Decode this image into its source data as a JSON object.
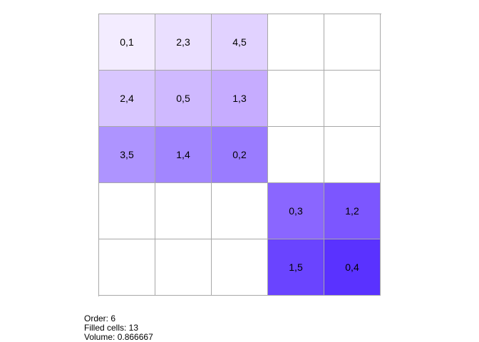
{
  "grid": {
    "rows": 5,
    "cols": 5,
    "cells": [
      [
        {
          "label": "0,1",
          "color": "#f3ecff"
        },
        {
          "label": "2,3",
          "color": "#eadfff"
        },
        {
          "label": "4,5",
          "color": "#e1d2ff"
        },
        {
          "label": "",
          "color": "#ffffff"
        },
        {
          "label": "",
          "color": "#ffffff"
        }
      ],
      [
        {
          "label": "2,4",
          "color": "#d8c6ff"
        },
        {
          "label": "0,5",
          "color": "#cfb9ff"
        },
        {
          "label": "1,3",
          "color": "#c6acff"
        },
        {
          "label": "",
          "color": "#ffffff"
        },
        {
          "label": "",
          "color": "#ffffff"
        }
      ],
      [
        {
          "label": "3,5",
          "color": "#ae94ff"
        },
        {
          "label": "1,4",
          "color": "#a286ff"
        },
        {
          "label": "0,2",
          "color": "#9a7cff"
        },
        {
          "label": "",
          "color": "#ffffff"
        },
        {
          "label": "",
          "color": "#ffffff"
        }
      ],
      [
        {
          "label": "",
          "color": "#ffffff"
        },
        {
          "label": "",
          "color": "#ffffff"
        },
        {
          "label": "",
          "color": "#ffffff"
        },
        {
          "label": "0,3",
          "color": "#8a66ff"
        },
        {
          "label": "1,2",
          "color": "#7c56ff"
        }
      ],
      [
        {
          "label": "",
          "color": "#ffffff"
        },
        {
          "label": "",
          "color": "#ffffff"
        },
        {
          "label": "",
          "color": "#ffffff"
        },
        {
          "label": "1,5",
          "color": "#6a44ff"
        },
        {
          "label": "0,4",
          "color": "#5a32ff"
        }
      ]
    ]
  },
  "info": {
    "order": "Order: 6",
    "filled": "Filled cells: 13",
    "volume": "Volume: 0.866667"
  }
}
